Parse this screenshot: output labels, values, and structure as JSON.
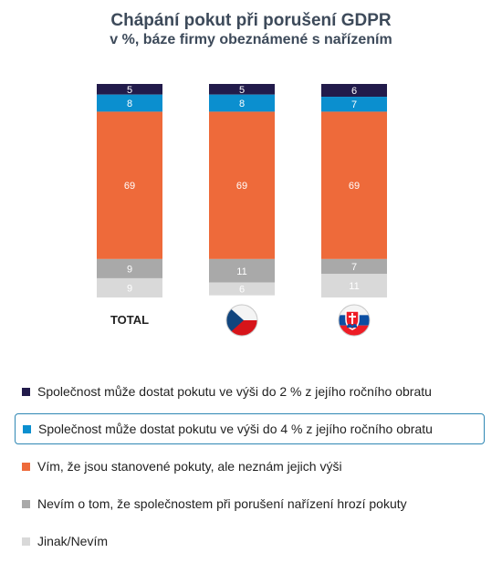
{
  "chart_data": {
    "type": "bar",
    "stacked": true,
    "title": "Chápání pokut při porušení GDPR",
    "subtitle": "v %, báze firmy obeznámené s nařízením",
    "categories": [
      "TOTAL",
      "",
      ""
    ],
    "category_icons": [
      "",
      "czech-flag-icon",
      "slovak-flag-icon"
    ],
    "series": [
      {
        "name": "Společnost může dostat pokutu ve výši do 2 % z jejího ročního obratu",
        "values": [
          5,
          5,
          6
        ],
        "color": "#221b4b"
      },
      {
        "name": "Společnost může dostat pokutu ve výši do 4 % z jejího ročního obratu",
        "values": [
          8,
          8,
          7
        ],
        "color": "#0b8fcf"
      },
      {
        "name": "Vím, že jsou stanovené pokuty, ale neznám jejich výši",
        "values": [
          69,
          69,
          69
        ],
        "color": "#ee6a3a"
      },
      {
        "name": "Nevím o tom, že společnostem při porušení nařízení hrozí pokuty",
        "values": [
          9,
          11,
          7
        ],
        "color": "#a9a9a9"
      },
      {
        "name": "Jinak/Nevím",
        "values": [
          9,
          6,
          11
        ],
        "color": "#d9d9d9"
      }
    ],
    "ylim": [
      0,
      100
    ],
    "legend_position": "bottom",
    "legend_highlight": 1
  }
}
